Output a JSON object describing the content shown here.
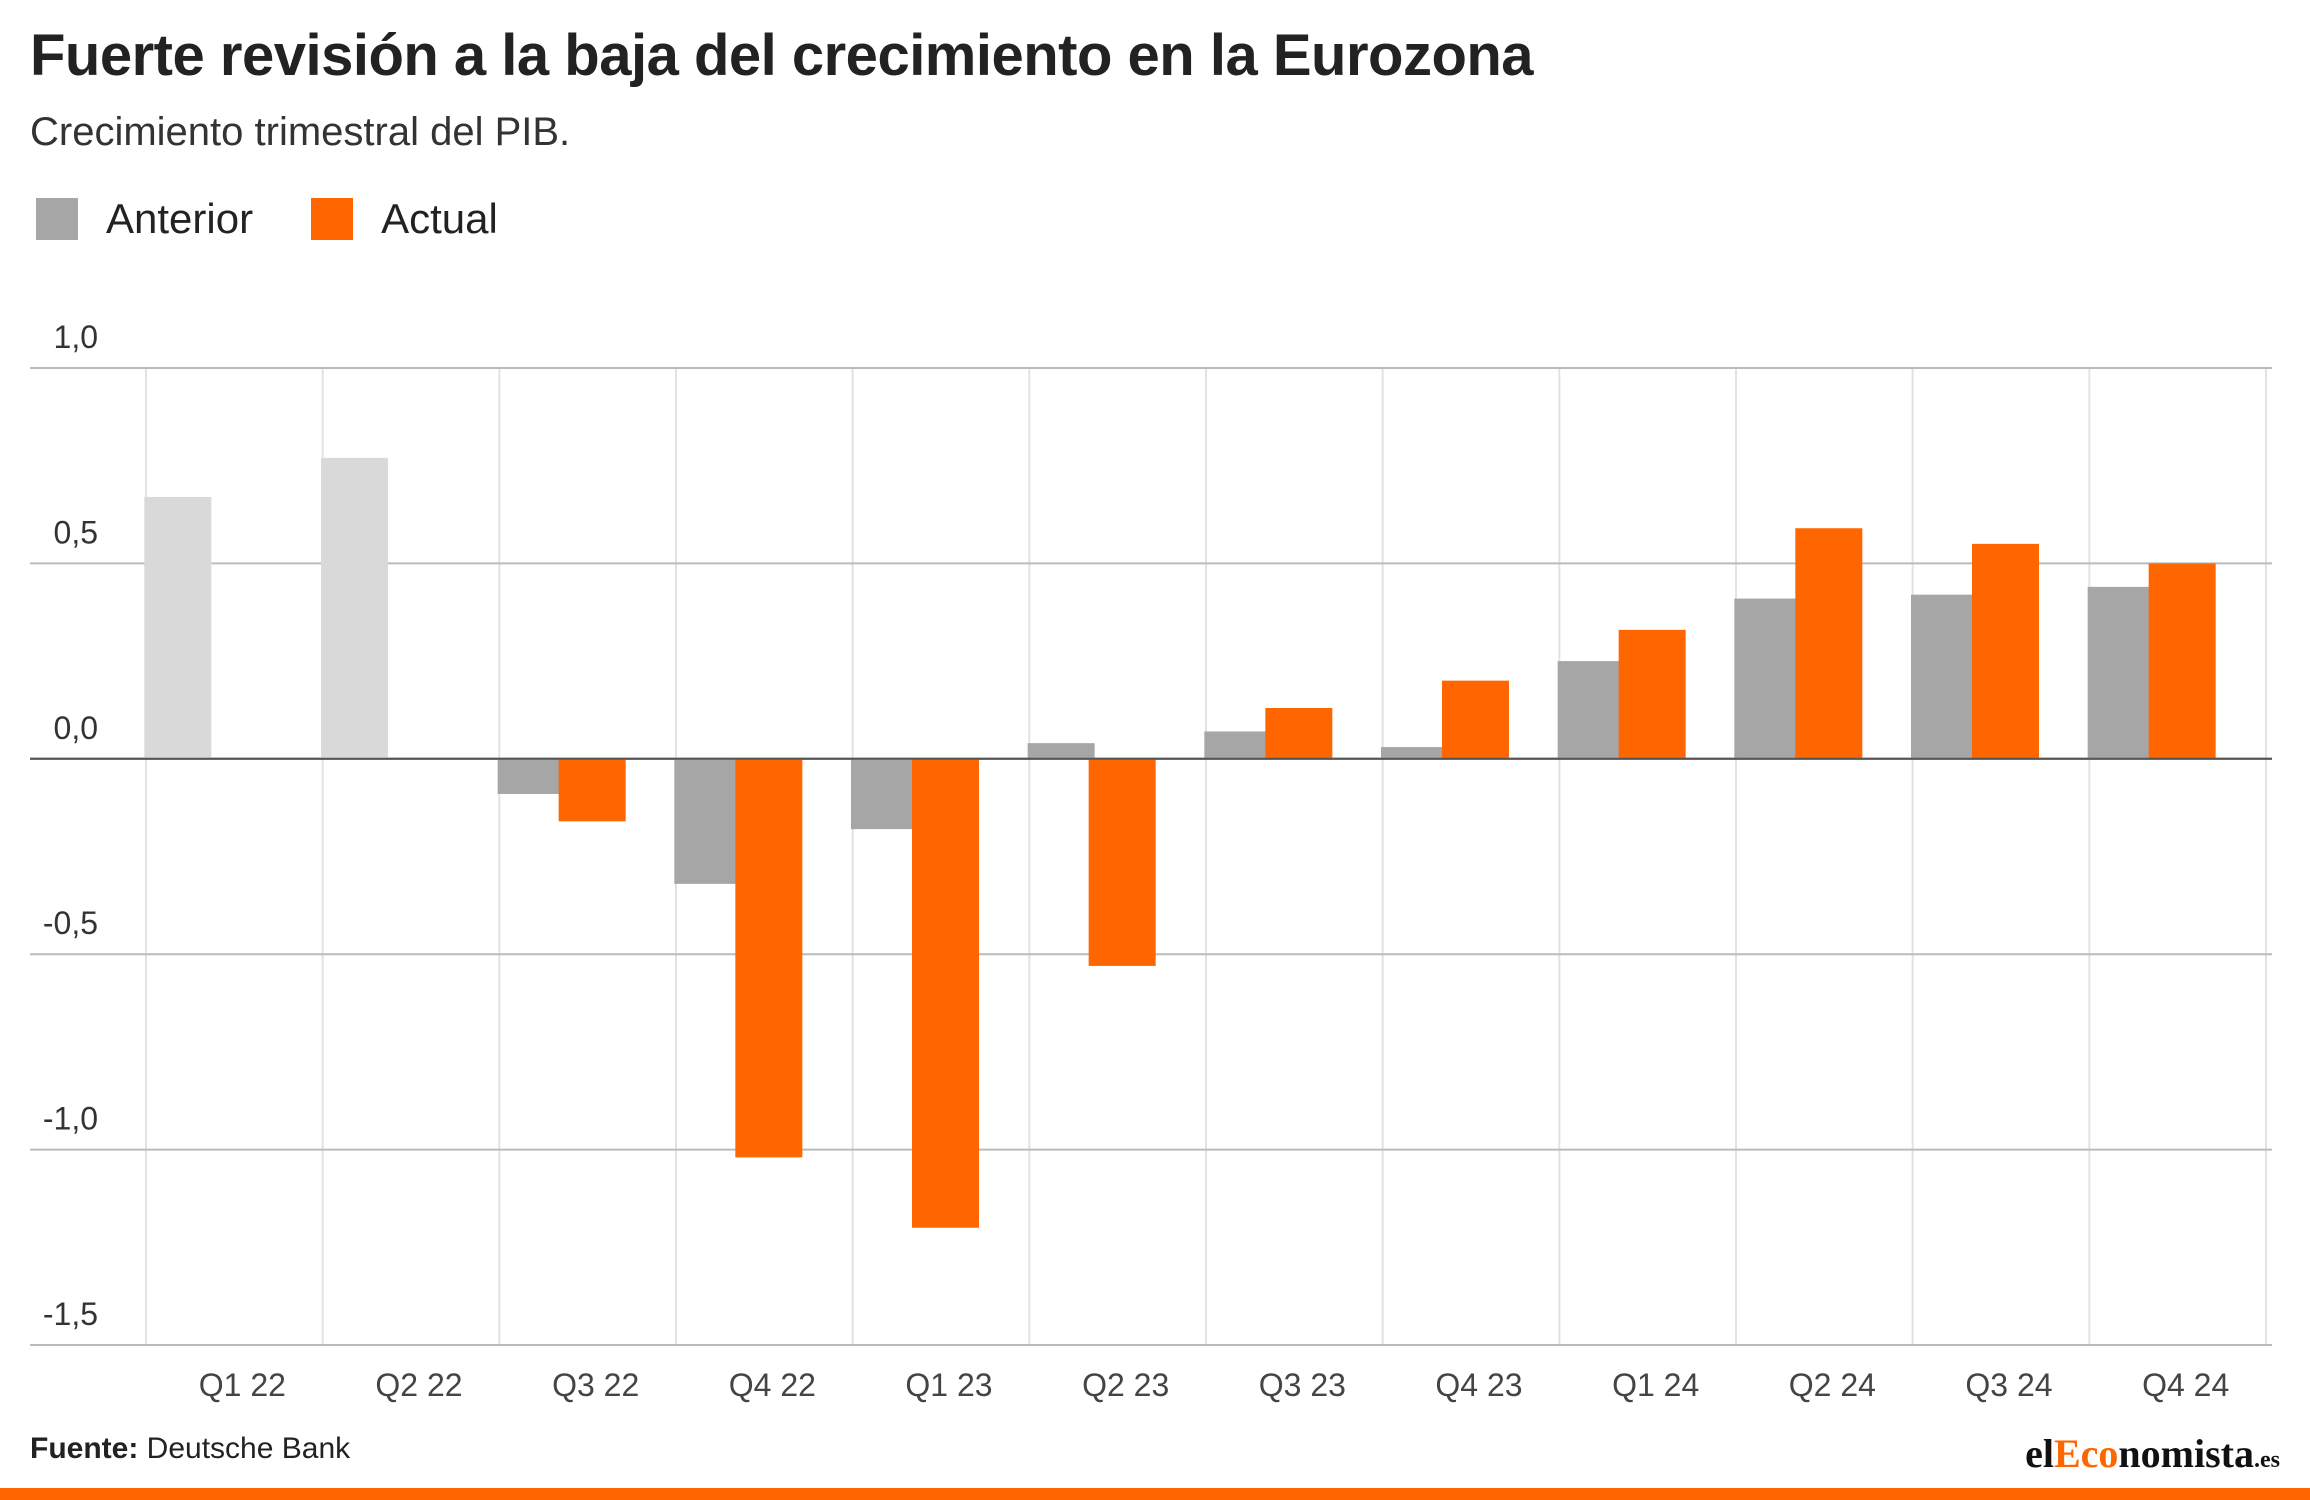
{
  "chart_data": {
    "type": "bar",
    "title": "Fuerte revisión a la baja del crecimiento en la Eurozona",
    "subtitle": "Crecimiento trimestral del PIB.",
    "categories": [
      "Q1 22",
      "Q2 22",
      "Q3 22",
      "Q4 22",
      "Q1 23",
      "Q2 23",
      "Q3 23",
      "Q4 23",
      "Q1 24",
      "Q2 24",
      "Q3 24",
      "Q4 24"
    ],
    "series": [
      {
        "name": "Anterior",
        "color": "#a6a6a6",
        "values": [
          0.67,
          0.77,
          -0.09,
          -0.32,
          -0.18,
          0.04,
          0.07,
          0.03,
          0.25,
          0.41,
          0.42,
          0.44
        ]
      },
      {
        "name": "Actual",
        "color": "#ff6600",
        "values": [
          null,
          null,
          -0.16,
          -1.02,
          -1.2,
          -0.53,
          0.13,
          0.2,
          0.33,
          0.59,
          0.55,
          0.5
        ]
      }
    ],
    "faded_categories": [
      0,
      1
    ],
    "faded_color": "#d9d9d9",
    "ylim": [
      -1.5,
      1.0
    ],
    "yticks": [
      1.0,
      0.5,
      0.0,
      -0.5,
      -1.0,
      -1.5
    ],
    "ytick_labels": [
      "1,0",
      "0,5",
      "0,0",
      "-0,5",
      "-1,0",
      "-1,5"
    ],
    "xlabel": "",
    "ylabel": "",
    "grid": true,
    "legend_position": "top-left"
  },
  "source": {
    "label": "Fuente:",
    "text": "Deutsche Bank"
  },
  "logo": {
    "part1": "el",
    "part2": "Eco",
    "part3": "nomista",
    "part4": ".es"
  }
}
